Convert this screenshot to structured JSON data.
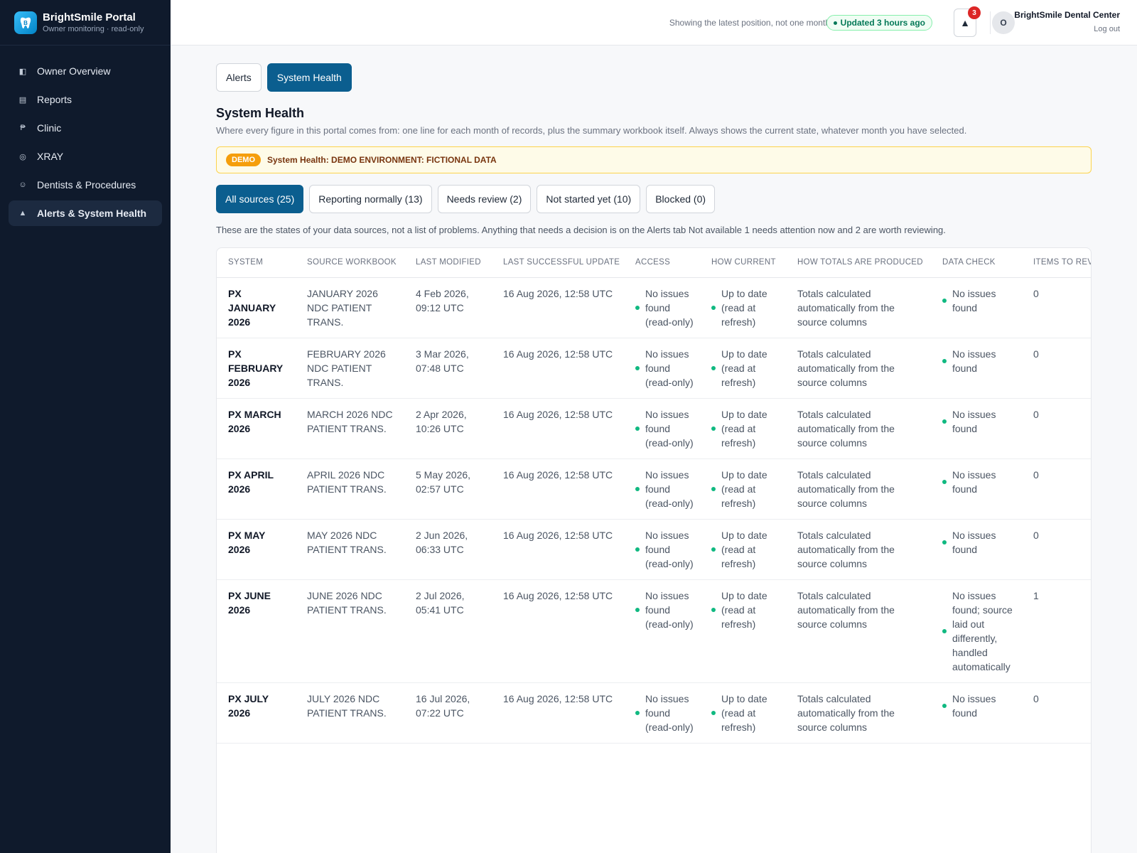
{
  "brand": {
    "name": "BrightSmile Portal",
    "subtitle": "Owner monitoring · read-only"
  },
  "sidebar": {
    "items": [
      {
        "label": "Owner Overview",
        "icon": "panel-icon",
        "glyph": "◧"
      },
      {
        "label": "Reports",
        "icon": "list-icon",
        "glyph": "▤"
      },
      {
        "label": "Clinic",
        "icon": "clinic-icon",
        "glyph": "₱"
      },
      {
        "label": "XRAY",
        "icon": "xray-icon",
        "glyph": "◎"
      },
      {
        "label": "Dentists & Procedures",
        "icon": "smile-icon",
        "glyph": "☺"
      },
      {
        "label": "Alerts & System Health",
        "icon": "alert-icon",
        "glyph": "▲"
      }
    ],
    "active_index": 5
  },
  "topbar": {
    "note": "Showing the latest position, not one month",
    "updated": "Updated 3 hours ago",
    "alert_count": "3",
    "avatar_initial": "O",
    "user": "BrightSmile Dental Center",
    "logout": "Log out"
  },
  "tabs": [
    {
      "label": "Alerts"
    },
    {
      "label": "System Health"
    }
  ],
  "page": {
    "title": "System Health",
    "subtitle": "Where every figure in this portal comes from: one line for each month of records, plus the summary workbook itself. Always shows the current state, whatever month you have selected."
  },
  "banner": {
    "pill": "DEMO",
    "text": "System Health: DEMO ENVIRONMENT: FICTIONAL DATA"
  },
  "filters": [
    {
      "label": "All sources (25)"
    },
    {
      "label": "Reporting normally (13)"
    },
    {
      "label": "Needs review (2)"
    },
    {
      "label": "Not started yet (10)"
    },
    {
      "label": "Blocked (0)"
    }
  ],
  "states_note": "These are the states of your data sources, not a list of problems. Anything that needs a decision is on the Alerts tab Not available 1 needs attention now and 2 are worth reviewing.",
  "table": {
    "columns": [
      "SYSTEM",
      "SOURCE WORKBOOK",
      "LAST MODIFIED",
      "LAST SUCCESSFUL UPDATE",
      "ACCESS",
      "HOW CURRENT",
      "HOW TOTALS ARE PRODUCED",
      "DATA CHECK",
      "ITEMS TO REVIEW"
    ],
    "rows": [
      {
        "system": "PX JANUARY 2026",
        "workbook": "JANUARY 2026 NDC PATIENT TRANS.",
        "modified": "4 Feb 2026, 09:12 UTC",
        "updated": "16 Aug 2026, 12:58 UTC",
        "access": "No issues found (read-only)",
        "current": "Up to date (read at refresh)",
        "totals": "Totals calculated automatically from the source columns",
        "check": "No issues found",
        "items": "0"
      },
      {
        "system": "PX FEBRUARY 2026",
        "workbook": "FEBRUARY 2026 NDC PATIENT TRANS.",
        "modified": "3 Mar 2026, 07:48 UTC",
        "updated": "16 Aug 2026, 12:58 UTC",
        "access": "No issues found (read-only)",
        "current": "Up to date (read at refresh)",
        "totals": "Totals calculated automatically from the source columns",
        "check": "No issues found",
        "items": "0"
      },
      {
        "system": "PX MARCH 2026",
        "workbook": "MARCH 2026 NDC PATIENT TRANS.",
        "modified": "2 Apr 2026, 10:26 UTC",
        "updated": "16 Aug 2026, 12:58 UTC",
        "access": "No issues found (read-only)",
        "current": "Up to date (read at refresh)",
        "totals": "Totals calculated automatically from the source columns",
        "check": "No issues found",
        "items": "0"
      },
      {
        "system": "PX APRIL 2026",
        "workbook": "APRIL 2026 NDC PATIENT TRANS.",
        "modified": "5 May 2026, 02:57 UTC",
        "updated": "16 Aug 2026, 12:58 UTC",
        "access": "No issues found (read-only)",
        "current": "Up to date (read at refresh)",
        "totals": "Totals calculated automatically from the source columns",
        "check": "No issues found",
        "items": "0"
      },
      {
        "system": "PX MAY 2026",
        "workbook": "MAY 2026 NDC PATIENT TRANS.",
        "modified": "2 Jun 2026, 06:33 UTC",
        "updated": "16 Aug 2026, 12:58 UTC",
        "access": "No issues found (read-only)",
        "current": "Up to date (read at refresh)",
        "totals": "Totals calculated automatically from the source columns",
        "check": "No issues found",
        "items": "0"
      },
      {
        "system": "PX JUNE 2026",
        "workbook": "JUNE 2026 NDC PATIENT TRANS.",
        "modified": "2 Jul 2026, 05:41 UTC",
        "updated": "16 Aug 2026, 12:58 UTC",
        "access": "No issues found (read-only)",
        "current": "Up to date (read at refresh)",
        "totals": "Totals calculated automatically from the source columns",
        "check": "No issues found; source laid out differently, handled automatically",
        "items": "1"
      },
      {
        "system": "PX JULY 2026",
        "workbook": "JULY 2026 NDC PATIENT TRANS.",
        "modified": "16 Jul 2026, 07:22 UTC",
        "updated": "16 Aug 2026, 12:58 UTC",
        "access": "No issues found (read-only)",
        "current": "Up to date (read at refresh)",
        "totals": "Totals calculated automatically from the source columns",
        "check": "No issues found",
        "items": "0"
      }
    ]
  },
  "colors": {
    "sidebar": "#0f1a2c",
    "accent": "#0b5e8f",
    "status_ok": "#10b981",
    "alert_badge": "#dc2626",
    "demo": "#f59e0b"
  }
}
